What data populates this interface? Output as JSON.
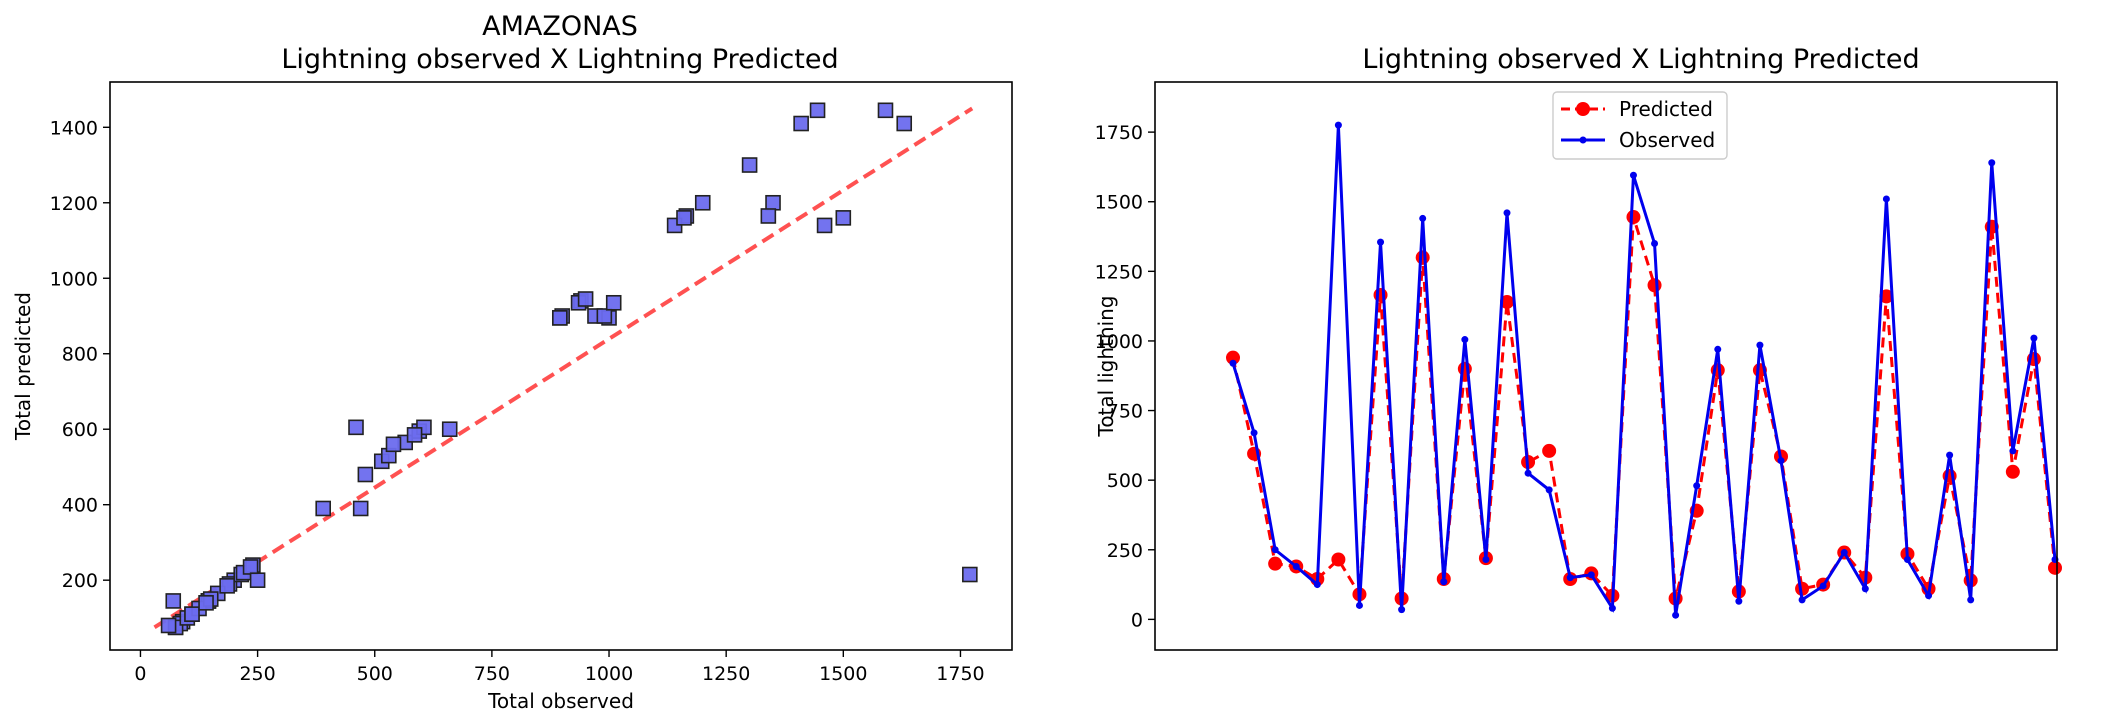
{
  "chart_data": [
    {
      "type": "scatter",
      "title": "AMAZONAS",
      "subtitle": "Lightning observed X Lightning Predicted",
      "xlabel": "Total observed",
      "ylabel": "Total predicted",
      "xlim": [
        -65,
        1860
      ],
      "ylim": [
        15,
        1520
      ],
      "xticks": [
        0,
        250,
        500,
        750,
        1000,
        1250,
        1500,
        1750
      ],
      "yticks": [
        200,
        400,
        600,
        800,
        1000,
        1200,
        1400
      ],
      "points_color": "#6b6bee",
      "fit_color": "#ff3333",
      "fit_line": {
        "x": [
          30,
          1775
        ],
        "y": [
          75,
          1450
        ]
      },
      "x": [
        940,
        595,
        200,
        190,
        145,
        215,
        90,
        1165,
        75,
        1300,
        145,
        900,
        220,
        1140,
        565,
        605,
        145,
        165,
        85,
        1445,
        1200,
        75,
        390,
        895,
        100,
        895,
        585,
        110,
        125,
        240,
        150,
        1160,
        235,
        110,
        515,
        140,
        1410,
        530,
        935,
        185,
        660,
        460,
        470,
        480,
        1350,
        1340,
        1460,
        1500,
        1000,
        970,
        1590,
        1630,
        1770,
        950,
        990,
        1010,
        540,
        60,
        70,
        250
      ],
      "y": [
        940,
        595,
        200,
        190,
        145,
        215,
        90,
        1165,
        75,
        1300,
        145,
        900,
        220,
        1140,
        565,
        605,
        145,
        165,
        85,
        1445,
        1200,
        75,
        390,
        895,
        100,
        895,
        585,
        110,
        125,
        240,
        150,
        1160,
        235,
        110,
        515,
        140,
        1410,
        530,
        935,
        185,
        600,
        605,
        390,
        480,
        1200,
        1165,
        1140,
        1160,
        895,
        900,
        1445,
        1410,
        215,
        945,
        900,
        935,
        560,
        80,
        145,
        200
      ]
    },
    {
      "type": "line",
      "title": "Lightning observed X Lightning Predicted",
      "xlabel": "",
      "ylabel": "Total lightning",
      "ylim": [
        -110,
        1930
      ],
      "yticks": [
        0,
        250,
        500,
        750,
        1000,
        1250,
        1500,
        1750
      ],
      "legend_location": "upper center",
      "series": [
        {
          "name": "Predicted",
          "color": "#ff0000",
          "style": "dashed",
          "marker": "large-circle",
          "values": [
            940,
            595,
            200,
            190,
            145,
            215,
            90,
            1165,
            75,
            1300,
            145,
            900,
            220,
            1140,
            565,
            605,
            145,
            165,
            85,
            1445,
            1200,
            75,
            390,
            895,
            100,
            895,
            585,
            110,
            125,
            240,
            150,
            1160,
            235,
            110,
            515,
            140,
            1410,
            530,
            935,
            185
          ]
        },
        {
          "name": "Observed",
          "color": "#0000ee",
          "style": "solid",
          "marker": "small-circle",
          "values": [
            920,
            670,
            250,
            190,
            125,
            1775,
            50,
            1355,
            35,
            1440,
            135,
            1005,
            215,
            1460,
            525,
            465,
            150,
            160,
            40,
            1595,
            1350,
            15,
            480,
            970,
            65,
            985,
            570,
            70,
            120,
            240,
            110,
            1510,
            215,
            85,
            590,
            70,
            1640,
            605,
            1010,
            215
          ]
        }
      ]
    }
  ]
}
